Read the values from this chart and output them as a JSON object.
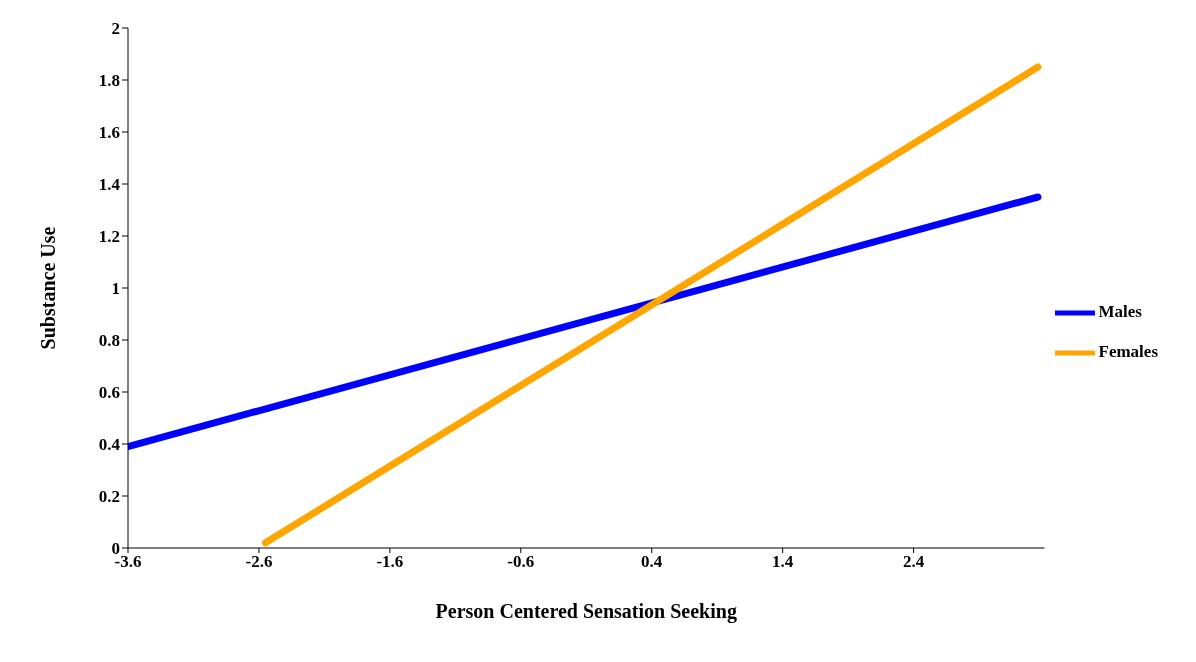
{
  "chart_data": {
    "type": "line",
    "xlabel": "Person Centered Sensation Seeking",
    "ylabel": "Substance Use",
    "xlim": [
      -3.6,
      3.4
    ],
    "xticks": [
      -3.6,
      -2.6,
      -1.6,
      -0.6,
      0.4,
      1.4,
      2.4
    ],
    "ylim": [
      0,
      2
    ],
    "yticks": [
      0,
      0.2,
      0.4,
      0.6,
      0.8,
      1,
      1.2,
      1.4,
      1.6,
      1.8,
      2
    ],
    "grid": false,
    "legend": "right",
    "marker": "none",
    "line_style": "solid",
    "series": [
      {
        "name": "Males",
        "color": "#0000ff",
        "x": [
          -3.6,
          3.35
        ],
        "values": [
          0.39,
          1.35
        ]
      },
      {
        "name": "Females",
        "color": "#ffa500",
        "x": [
          -2.55,
          3.35
        ],
        "values": [
          0.02,
          1.85
        ]
      }
    ]
  }
}
